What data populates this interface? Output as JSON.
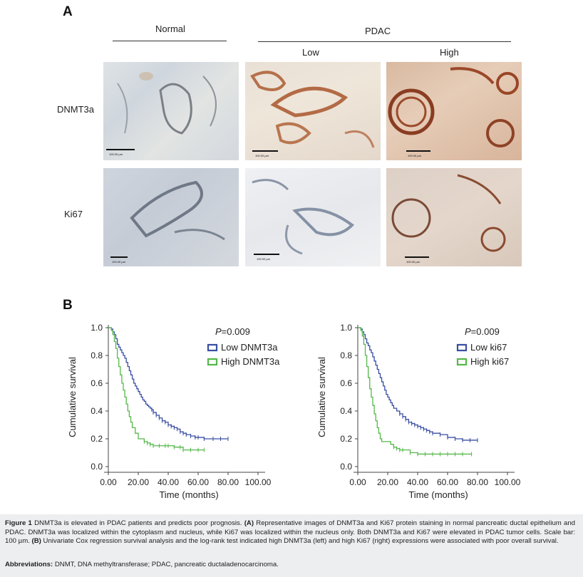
{
  "panel_a": {
    "letter": "A",
    "group_normal": "Normal",
    "group_pdac": "PDAC",
    "sub_low": "Low",
    "sub_high": "High",
    "rows": [
      "DNMT3a",
      "Ki67"
    ],
    "scale_label": "100.00 µm"
  },
  "panel_b": {
    "letter": "B"
  },
  "chart_data": [
    {
      "type": "line",
      "title": "",
      "xlabel": "Time (months)",
      "ylabel": "Cumulative survival",
      "xlim": [
        0,
        100
      ],
      "ylim": [
        0,
        1.0
      ],
      "xticks": [
        "0.00",
        "20.00",
        "40.00",
        "60.00",
        "80.00",
        "100.00"
      ],
      "yticks": [
        "0.0",
        "0.2",
        "0.4",
        "0.6",
        "0.8",
        "1.0"
      ],
      "annotation": "P=0.009",
      "annotation_italic": "P",
      "annotation_rest": "=0.009",
      "legend_position": "top-right",
      "series": [
        {
          "name": "Low DNMT3a",
          "color": "#3a4fa3",
          "x": [
            0,
            2,
            3,
            4,
            5,
            6,
            7,
            8,
            9,
            10,
            11,
            12,
            13,
            14,
            15,
            16,
            17,
            18,
            19,
            20,
            21,
            22,
            23,
            24,
            25,
            26,
            27,
            28,
            29,
            30,
            32,
            34,
            36,
            38,
            40,
            42,
            44,
            46,
            48,
            50,
            52,
            55,
            58,
            60,
            64,
            70,
            75,
            80
          ],
          "y": [
            1.0,
            0.99,
            0.97,
            0.95,
            0.92,
            0.88,
            0.86,
            0.84,
            0.82,
            0.8,
            0.78,
            0.75,
            0.72,
            0.69,
            0.66,
            0.63,
            0.6,
            0.58,
            0.56,
            0.54,
            0.52,
            0.5,
            0.48,
            0.47,
            0.45,
            0.44,
            0.43,
            0.42,
            0.41,
            0.39,
            0.37,
            0.35,
            0.33,
            0.32,
            0.3,
            0.29,
            0.28,
            0.27,
            0.25,
            0.24,
            0.23,
            0.22,
            0.21,
            0.21,
            0.2,
            0.2,
            0.2,
            0.2
          ]
        },
        {
          "name": "High DNMT3a",
          "color": "#56b84a",
          "x": [
            0,
            2,
            3,
            4,
            5,
            6,
            7,
            8,
            9,
            10,
            11,
            12,
            13,
            14,
            15,
            16,
            18,
            20,
            22,
            24,
            26,
            28,
            30,
            34,
            38,
            40,
            44,
            48,
            50,
            55,
            60,
            64
          ],
          "y": [
            1.0,
            0.98,
            0.95,
            0.9,
            0.85,
            0.78,
            0.72,
            0.66,
            0.6,
            0.55,
            0.5,
            0.45,
            0.4,
            0.36,
            0.32,
            0.28,
            0.24,
            0.2,
            0.2,
            0.18,
            0.17,
            0.16,
            0.15,
            0.15,
            0.15,
            0.15,
            0.14,
            0.14,
            0.12,
            0.12,
            0.12,
            0.12
          ]
        }
      ]
    },
    {
      "type": "line",
      "title": "",
      "xlabel": "Time (months)",
      "ylabel": "Cumulative survival",
      "xlim": [
        0,
        100
      ],
      "ylim": [
        0,
        1.0
      ],
      "xticks": [
        "0.00",
        "20.00",
        "40.00",
        "60.00",
        "80.00",
        "100.00"
      ],
      "yticks": [
        "0.0",
        "0.2",
        "0.4",
        "0.6",
        "0.8",
        "1.0"
      ],
      "annotation": "P=0.009",
      "annotation_italic": "P",
      "annotation_rest": "=0.009",
      "legend_position": "top-right",
      "series": [
        {
          "name": "Low ki67",
          "color": "#3a4fa3",
          "x": [
            0,
            2,
            3,
            4,
            5,
            6,
            7,
            8,
            9,
            10,
            11,
            12,
            13,
            14,
            15,
            16,
            17,
            18,
            19,
            20,
            21,
            22,
            23,
            24,
            26,
            28,
            30,
            32,
            34,
            36,
            38,
            40,
            42,
            44,
            46,
            48,
            50,
            55,
            60,
            65,
            70,
            75,
            80
          ],
          "y": [
            1.0,
            0.99,
            0.97,
            0.95,
            0.92,
            0.89,
            0.87,
            0.84,
            0.82,
            0.79,
            0.76,
            0.73,
            0.7,
            0.67,
            0.64,
            0.61,
            0.58,
            0.55,
            0.52,
            0.5,
            0.48,
            0.46,
            0.44,
            0.42,
            0.4,
            0.38,
            0.36,
            0.34,
            0.32,
            0.31,
            0.3,
            0.29,
            0.28,
            0.27,
            0.26,
            0.25,
            0.24,
            0.23,
            0.21,
            0.2,
            0.19,
            0.19,
            0.19
          ]
        },
        {
          "name": "High ki67",
          "color": "#56b84a",
          "x": [
            0,
            2,
            3,
            4,
            5,
            6,
            7,
            8,
            9,
            10,
            11,
            12,
            13,
            14,
            15,
            16,
            18,
            20,
            22,
            24,
            26,
            28,
            30,
            35,
            40,
            45,
            50,
            55,
            60,
            65,
            70,
            76
          ],
          "y": [
            1.0,
            0.98,
            0.94,
            0.88,
            0.8,
            0.72,
            0.64,
            0.56,
            0.5,
            0.44,
            0.38,
            0.33,
            0.28,
            0.24,
            0.2,
            0.18,
            0.18,
            0.18,
            0.16,
            0.14,
            0.13,
            0.12,
            0.12,
            0.1,
            0.09,
            0.09,
            0.09,
            0.09,
            0.09,
            0.09,
            0.09,
            0.09
          ]
        }
      ]
    }
  ],
  "caption": {
    "lead": "Figure 1",
    "text1": "DNMT3a is elevated in PDAC patients and predicts poor prognosis.",
    "a_tag": "(A)",
    "text2": "Representative images of DNMT3a and Ki67 protein staining in normal pancreatic ductal epithelium and PDAC. DNMT3a was localized within the cytoplasm and nucleus, while Ki67 was localized within the nucleus only. Both DNMT3a and Ki67 were elevated in PDAC tumor cells. Scale bar: 100 µm.",
    "b_tag": "(B)",
    "text3": "Univariate Cox regression survival analysis and the log-rank test indicated high DNMT3a (left) and high Ki67 (right) expressions were associated with poor overall survival.",
    "abbr_label": "Abbreviations:",
    "abbr_text": "DNMT, DNA methyltransferase; PDAC, pancreatic ductaladenocarcinoma."
  },
  "colors": {
    "low_series": "#3a4fa3",
    "high_series": "#56b84a",
    "caption_bg": "#eceeef"
  }
}
